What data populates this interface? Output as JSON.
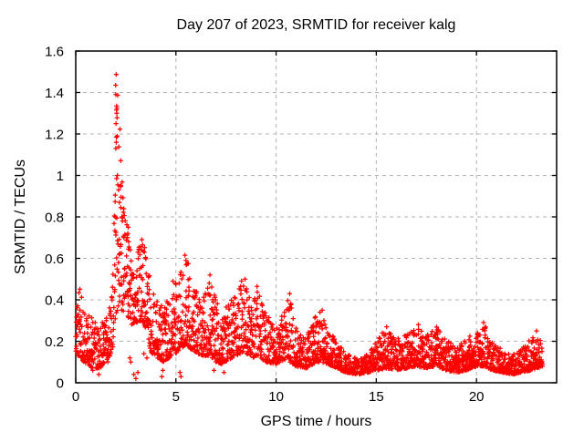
{
  "page": {
    "background": "#ffffff"
  },
  "chart_data": {
    "type": "scatter",
    "title": "Day 207 of 2023, SRMTID for receiver kalg",
    "xlabel": "GPS time / hours",
    "ylabel": "SRMTID / TECUs",
    "xlim": [
      0,
      24
    ],
    "ylim": [
      0,
      1.6
    ],
    "xticks": [
      0,
      5,
      10,
      15,
      20
    ],
    "xtick_labels": [
      "0",
      "5",
      "10",
      "15",
      "20"
    ],
    "yticks": [
      0,
      0.2,
      0.4,
      0.6,
      0.8,
      1,
      1.2,
      1.4,
      1.6
    ],
    "ytick_labels": [
      "0",
      "0.2",
      "0.4",
      "0.6",
      "0.8",
      "1",
      "1.2",
      "1.4",
      "1.6"
    ],
    "grid": {
      "visible": true,
      "style": "dashed",
      "color": "#b3b3b3"
    },
    "axis_color": "#000000",
    "marker": {
      "shape": "plus",
      "color": "#ff0000",
      "size": 5
    },
    "x_start": 0,
    "x_end": 23.3,
    "points_per_hour": 105,
    "shape_exponent": 1.9,
    "seed": 42,
    "envelope": [
      [
        0.0,
        0.14,
        0.52
      ],
      [
        0.25,
        0.12,
        0.44
      ],
      [
        0.5,
        0.09,
        0.37
      ],
      [
        0.8,
        0.07,
        0.32
      ],
      [
        1.2,
        0.07,
        0.29
      ],
      [
        1.6,
        0.1,
        0.32
      ],
      [
        1.85,
        0.17,
        0.48
      ],
      [
        1.95,
        0.3,
        1.1
      ],
      [
        2.05,
        0.34,
        1.5
      ],
      [
        2.15,
        0.37,
        1.36
      ],
      [
        2.3,
        0.35,
        1.02
      ],
      [
        2.45,
        0.33,
        0.82
      ],
      [
        2.6,
        0.32,
        0.76
      ],
      [
        2.8,
        0.28,
        0.58
      ],
      [
        3.0,
        0.29,
        0.62
      ],
      [
        3.25,
        0.3,
        0.7
      ],
      [
        3.5,
        0.26,
        0.66
      ],
      [
        3.75,
        0.15,
        0.46
      ],
      [
        4.0,
        0.12,
        0.4
      ],
      [
        4.4,
        0.1,
        0.36
      ],
      [
        4.8,
        0.13,
        0.46
      ],
      [
        5.1,
        0.15,
        0.5
      ],
      [
        5.45,
        0.18,
        0.62
      ],
      [
        5.8,
        0.16,
        0.52
      ],
      [
        6.1,
        0.14,
        0.46
      ],
      [
        6.4,
        0.13,
        0.42
      ],
      [
        6.7,
        0.13,
        0.5
      ],
      [
        7.0,
        0.1,
        0.4
      ],
      [
        7.3,
        0.09,
        0.33
      ],
      [
        7.6,
        0.11,
        0.38
      ],
      [
        8.0,
        0.13,
        0.45
      ],
      [
        8.4,
        0.15,
        0.51
      ],
      [
        8.8,
        0.12,
        0.4
      ],
      [
        9.1,
        0.13,
        0.46
      ],
      [
        9.5,
        0.1,
        0.35
      ],
      [
        10.0,
        0.09,
        0.28
      ],
      [
        10.4,
        0.11,
        0.34
      ],
      [
        10.65,
        0.1,
        0.43
      ],
      [
        11.0,
        0.08,
        0.26
      ],
      [
        11.5,
        0.07,
        0.22
      ],
      [
        12.0,
        0.1,
        0.33
      ],
      [
        12.25,
        0.1,
        0.35
      ],
      [
        12.6,
        0.09,
        0.28
      ],
      [
        13.0,
        0.07,
        0.2
      ],
      [
        13.5,
        0.05,
        0.14
      ],
      [
        14.0,
        0.04,
        0.12
      ],
      [
        14.6,
        0.05,
        0.14
      ],
      [
        15.0,
        0.06,
        0.2
      ],
      [
        15.5,
        0.07,
        0.27
      ],
      [
        16.0,
        0.06,
        0.22
      ],
      [
        16.5,
        0.07,
        0.24
      ],
      [
        17.0,
        0.08,
        0.27
      ],
      [
        17.5,
        0.07,
        0.23
      ],
      [
        18.0,
        0.08,
        0.27
      ],
      [
        18.5,
        0.06,
        0.21
      ],
      [
        19.0,
        0.05,
        0.17
      ],
      [
        19.5,
        0.06,
        0.21
      ],
      [
        20.0,
        0.08,
        0.26
      ],
      [
        20.4,
        0.08,
        0.29
      ],
      [
        20.8,
        0.06,
        0.21
      ],
      [
        21.3,
        0.05,
        0.16
      ],
      [
        21.8,
        0.04,
        0.14
      ],
      [
        22.2,
        0.05,
        0.16
      ],
      [
        22.7,
        0.06,
        0.21
      ],
      [
        23.0,
        0.07,
        0.23
      ],
      [
        23.3,
        0.08,
        0.19
      ]
    ],
    "highlight_points": [
      [
        2.02,
        1.487
      ],
      [
        1.99,
        1.435
      ],
      [
        2.0,
        1.39
      ],
      [
        2.04,
        1.335
      ],
      [
        2.06,
        1.325
      ],
      [
        2.03,
        1.315
      ],
      [
        2.05,
        1.3
      ],
      [
        2.01,
        1.25
      ],
      [
        2.07,
        1.19
      ],
      [
        2.02,
        1.16
      ],
      [
        2.0,
        1.13
      ],
      [
        2.08,
        1.0
      ],
      [
        2.04,
        0.985
      ],
      [
        2.1,
        0.955
      ],
      [
        2.14,
        0.93
      ],
      [
        1.97,
        0.905
      ],
      [
        2.18,
        0.87
      ],
      [
        2.25,
        0.845
      ],
      [
        2.3,
        0.8
      ],
      [
        2.62,
        0.75
      ],
      [
        2.6,
        0.72
      ],
      [
        2.58,
        0.7
      ],
      [
        2.64,
        0.68
      ],
      [
        2.66,
        0.655
      ],
      [
        3.3,
        0.69
      ],
      [
        3.34,
        0.665
      ],
      [
        3.28,
        0.64
      ],
      [
        5.45,
        0.615
      ],
      [
        5.5,
        0.59
      ],
      [
        5.62,
        0.575
      ],
      [
        6.7,
        0.52
      ],
      [
        4.85,
        0.49
      ],
      [
        8.45,
        0.5
      ],
      [
        9.05,
        0.465
      ],
      [
        10.68,
        0.43
      ],
      [
        12.3,
        0.35
      ],
      [
        15.52,
        0.27
      ],
      [
        17.1,
        0.28
      ],
      [
        20.35,
        0.29
      ],
      [
        23.0,
        0.25
      ]
    ],
    "low_outliers": [
      [
        0.85,
        0.06
      ],
      [
        1.15,
        0.04
      ],
      [
        2.9,
        0.04
      ],
      [
        3.0,
        0.02
      ],
      [
        3.1,
        0.05
      ],
      [
        4.3,
        0.03
      ],
      [
        4.35,
        0.06
      ],
      [
        5.2,
        0.05
      ],
      [
        5.25,
        0.03
      ],
      [
        6.9,
        0.06
      ],
      [
        7.4,
        0.05
      ],
      [
        2.7,
        0.12
      ],
      [
        2.75,
        0.1
      ],
      [
        3.4,
        0.14
      ],
      [
        3.55,
        0.12
      ]
    ]
  }
}
